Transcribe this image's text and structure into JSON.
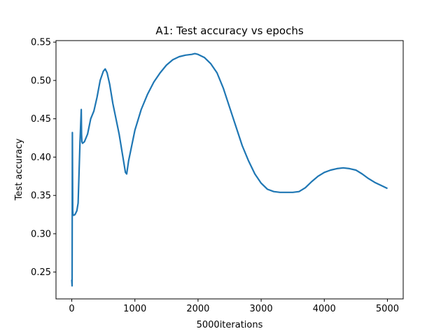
{
  "chart_data": {
    "type": "line",
    "title": "A1: Test accuracy vs epochs",
    "xlabel": "5000iterations",
    "ylabel": "Test accuracy",
    "xlim": [
      -250,
      5250
    ],
    "ylim": [
      0.215,
      0.552
    ],
    "xticks": [
      0,
      1000,
      2000,
      3000,
      4000,
      5000
    ],
    "xtick_labels": [
      "0",
      "1000",
      "2000",
      "3000",
      "4000",
      "5000"
    ],
    "yticks": [
      0.25,
      0.3,
      0.35,
      0.4,
      0.45,
      0.5,
      0.55
    ],
    "ytick_labels": [
      "0.25",
      "0.30",
      "0.35",
      "0.40",
      "0.45",
      "0.50",
      "0.55"
    ],
    "grid": false,
    "legend": "none",
    "series": [
      {
        "color": "#1f77b4",
        "x": [
          0,
          5,
          10,
          15,
          20,
          30,
          50,
          80,
          100,
          130,
          150,
          155,
          160,
          170,
          200,
          250,
          300,
          350,
          400,
          450,
          500,
          530,
          560,
          600,
          650,
          700,
          750,
          800,
          850,
          870,
          900,
          950,
          1000,
          1100,
          1200,
          1300,
          1400,
          1500,
          1600,
          1700,
          1800,
          1900,
          1950,
          2000,
          2100,
          2200,
          2300,
          2400,
          2500,
          2600,
          2700,
          2800,
          2900,
          3000,
          3100,
          3200,
          3300,
          3400,
          3500,
          3600,
          3700,
          3800,
          3900,
          4000,
          4100,
          4200,
          4300,
          4400,
          4500,
          4600,
          4700,
          4800,
          4900,
          5000
        ],
        "y": [
          0.24,
          0.232,
          0.432,
          0.33,
          0.325,
          0.324,
          0.325,
          0.33,
          0.34,
          0.42,
          0.462,
          0.43,
          0.42,
          0.418,
          0.42,
          0.43,
          0.45,
          0.46,
          0.478,
          0.5,
          0.512,
          0.515,
          0.51,
          0.495,
          0.47,
          0.45,
          0.43,
          0.405,
          0.38,
          0.378,
          0.395,
          0.415,
          0.435,
          0.462,
          0.482,
          0.498,
          0.51,
          0.52,
          0.527,
          0.531,
          0.533,
          0.534,
          0.535,
          0.534,
          0.53,
          0.522,
          0.51,
          0.49,
          0.465,
          0.44,
          0.415,
          0.395,
          0.378,
          0.366,
          0.358,
          0.355,
          0.354,
          0.354,
          0.354,
          0.355,
          0.36,
          0.368,
          0.375,
          0.38,
          0.383,
          0.385,
          0.386,
          0.385,
          0.383,
          0.378,
          0.372,
          0.367,
          0.363,
          0.359
        ]
      }
    ]
  }
}
